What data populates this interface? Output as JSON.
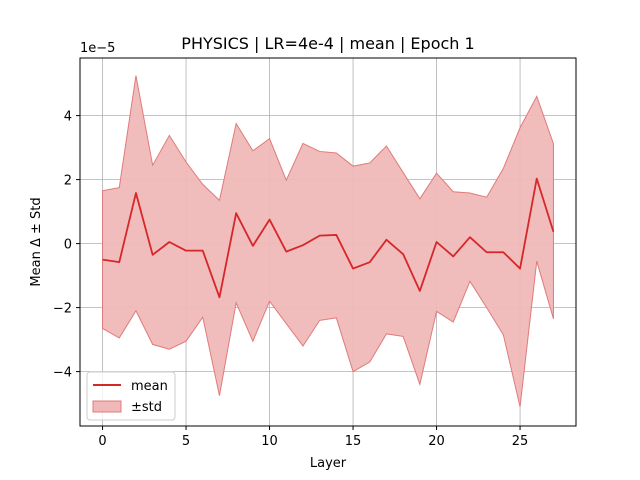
{
  "chart_data": {
    "type": "line",
    "title": "PHYSICS | LR=4e-4 | mean | Epoch 1",
    "xlabel": "Layer",
    "ylabel": "Mean Δ ± Std",
    "y_multiplier_label": "1e−5",
    "xlim": [
      -1.35,
      28.35
    ],
    "ylim": [
      -5.7,
      5.8
    ],
    "x_ticks": [
      0,
      5,
      10,
      15,
      20,
      25
    ],
    "y_ticks": [
      -4,
      -2,
      0,
      2,
      4
    ],
    "x_tick_labels": [
      "0",
      "5",
      "10",
      "15",
      "20",
      "25"
    ],
    "y_tick_labels": [
      "−4",
      "−2",
      "0",
      "2",
      "4"
    ],
    "grid": true,
    "legend_position": "lower-left",
    "legend": [
      "mean",
      "±std"
    ],
    "colors": {
      "mean": "#d62728",
      "band_fill": "#f0b8b8",
      "band_edge": "#e07a7a",
      "grid": "#b0b0b0"
    },
    "x": [
      0,
      1,
      2,
      3,
      4,
      5,
      6,
      7,
      8,
      9,
      10,
      11,
      12,
      13,
      14,
      15,
      16,
      17,
      18,
      19,
      20,
      21,
      22,
      23,
      24,
      25,
      26,
      27
    ],
    "series": [
      {
        "name": "mean",
        "values": [
          -0.5,
          -0.58,
          1.58,
          -0.35,
          0.05,
          -0.22,
          -0.22,
          -1.68,
          0.95,
          -0.07,
          0.75,
          -0.25,
          -0.05,
          0.25,
          0.27,
          -0.78,
          -0.58,
          0.12,
          -0.33,
          -1.48,
          0.05,
          -0.4,
          0.2,
          -0.27,
          -0.27,
          -0.78,
          2.03,
          0.37
        ]
      },
      {
        "name": "±std",
        "upper": [
          1.65,
          1.75,
          5.25,
          2.45,
          3.38,
          2.55,
          1.85,
          1.35,
          3.75,
          2.9,
          3.28,
          1.98,
          3.13,
          2.88,
          2.83,
          2.42,
          2.52,
          3.05,
          2.22,
          1.4,
          2.2,
          1.62,
          1.58,
          1.45,
          2.35,
          3.62,
          4.6,
          3.12
        ],
        "lower": [
          -2.65,
          -2.95,
          -2.1,
          -3.15,
          -3.3,
          -3.05,
          -2.3,
          -4.75,
          -1.85,
          -3.05,
          -1.8,
          -2.5,
          -3.2,
          -2.4,
          -2.32,
          -4.0,
          -3.7,
          -2.82,
          -2.9,
          -4.4,
          -2.12,
          -2.45,
          -1.18,
          -2.0,
          -2.85,
          -5.1,
          -0.55,
          -2.35
        ]
      }
    ]
  }
}
